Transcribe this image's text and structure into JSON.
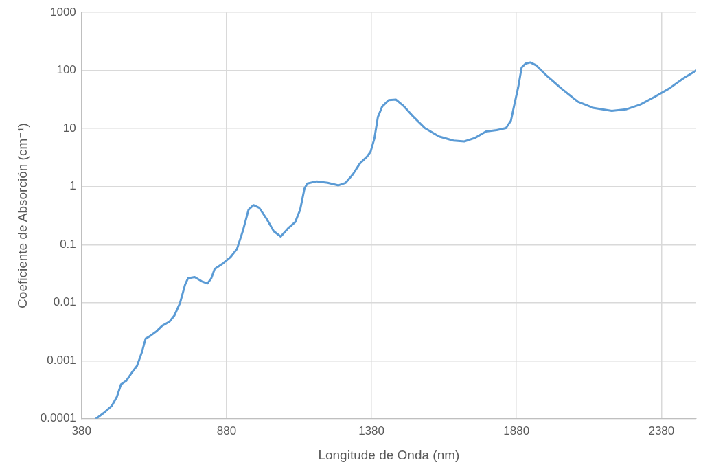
{
  "chart_data": {
    "type": "line",
    "xlabel": "Longitude de Onda (nm)",
    "ylabel": "Coeficiente de Absorción (cm⁻¹)",
    "log": "y",
    "grid": true,
    "legend": false,
    "marker": "none",
    "line_style": "solid",
    "xlim": [
      380,
      2500
    ],
    "xticks": [
      380,
      880,
      1380,
      1880,
      2380
    ],
    "ylim": [
      0.0001,
      1000
    ],
    "yticks": [
      0.0001,
      0.001,
      0.01,
      0.1,
      1,
      10,
      100,
      1000
    ],
    "x": [
      430,
      459,
      484,
      502,
      516,
      534,
      554,
      571,
      588,
      601,
      613,
      638,
      658,
      683,
      700,
      720,
      737,
      747,
      770,
      794,
      814,
      827,
      839,
      869,
      894,
      916,
      936,
      956,
      973,
      993,
      1018,
      1043,
      1067,
      1092,
      1117,
      1134,
      1149,
      1159,
      1191,
      1229,
      1266,
      1291,
      1316,
      1340,
      1365,
      1377,
      1390,
      1402,
      1417,
      1440,
      1464,
      1489,
      1526,
      1564,
      1613,
      1663,
      1700,
      1737,
      1775,
      1812,
      1844,
      1861,
      1874,
      1886,
      1898,
      1911,
      1928,
      1948,
      1985,
      2035,
      2092,
      2147,
      2209,
      2258,
      2308,
      2358,
      2407,
      2457,
      2500
    ],
    "series": [
      {
        "color": "#5b9bd5",
        "values": [
          0.0001,
          0.000129,
          0.000166,
          0.00024,
          0.00039,
          0.00045,
          0.00063,
          0.00081,
          0.0014,
          0.0024,
          0.0026,
          0.0032,
          0.004,
          0.0047,
          0.006,
          0.01,
          0.0204,
          0.0263,
          0.0276,
          0.0234,
          0.0214,
          0.026,
          0.038,
          0.048,
          0.061,
          0.084,
          0.17,
          0.4,
          0.48,
          0.43,
          0.28,
          0.17,
          0.138,
          0.19,
          0.245,
          0.4,
          0.93,
          1.13,
          1.23,
          1.16,
          1.05,
          1.16,
          1.63,
          2.5,
          3.3,
          4,
          6.7,
          15.7,
          24,
          31,
          31.7,
          25,
          15.7,
          10.2,
          7.3,
          6.2,
          6,
          6.9,
          8.9,
          9.4,
          10.2,
          13.6,
          27.5,
          51,
          113,
          131,
          138,
          123,
          81,
          49,
          29,
          22.6,
          20.2,
          21.4,
          26,
          35.5,
          49,
          74,
          100
        ]
      }
    ]
  }
}
